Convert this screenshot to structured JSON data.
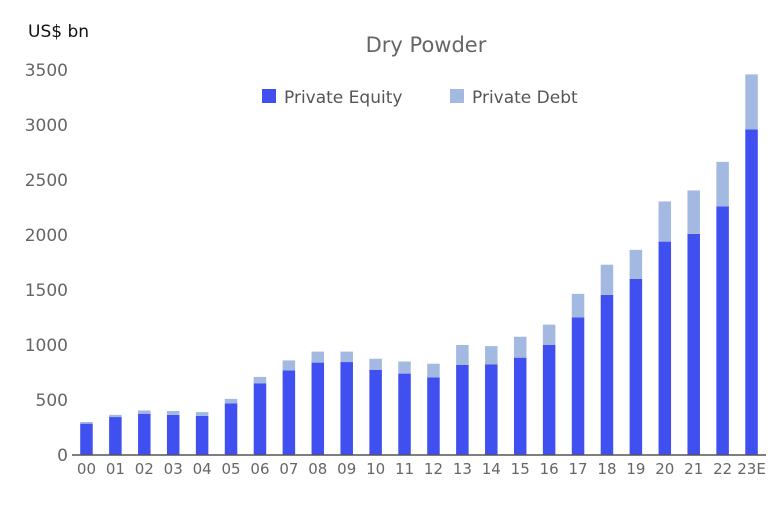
{
  "chart_data": {
    "type": "bar",
    "stacked": true,
    "title": "Dry Powder",
    "ylabel": "US$ bn",
    "ylim": [
      0,
      3500
    ],
    "yticks": [
      0,
      500,
      1000,
      1500,
      2000,
      2500,
      3000,
      3500
    ],
    "grid": false,
    "legend_position": "top",
    "categories": [
      "00",
      "01",
      "02",
      "03",
      "04",
      "05",
      "06",
      "07",
      "08",
      "09",
      "10",
      "11",
      "12",
      "13",
      "14",
      "15",
      "16",
      "17",
      "18",
      "19",
      "20",
      "21",
      "22",
      "23E"
    ],
    "series": [
      {
        "name": "Private Equity",
        "color": "#3f4ff0",
        "values": [
          285,
          345,
          375,
          365,
          355,
          470,
          650,
          770,
          840,
          845,
          775,
          740,
          705,
          820,
          825,
          885,
          1000,
          1250,
          1455,
          1600,
          1940,
          2010,
          2260,
          2960
        ]
      },
      {
        "name": "Private Debt",
        "color": "#a3b9e2",
        "values": [
          15,
          20,
          30,
          35,
          35,
          40,
          60,
          90,
          100,
          95,
          100,
          110,
          125,
          180,
          165,
          190,
          185,
          215,
          275,
          265,
          365,
          395,
          405,
          500
        ]
      }
    ]
  },
  "colors": {
    "axis": "#555555",
    "tick_text": "#666666",
    "title": "#666666"
  }
}
